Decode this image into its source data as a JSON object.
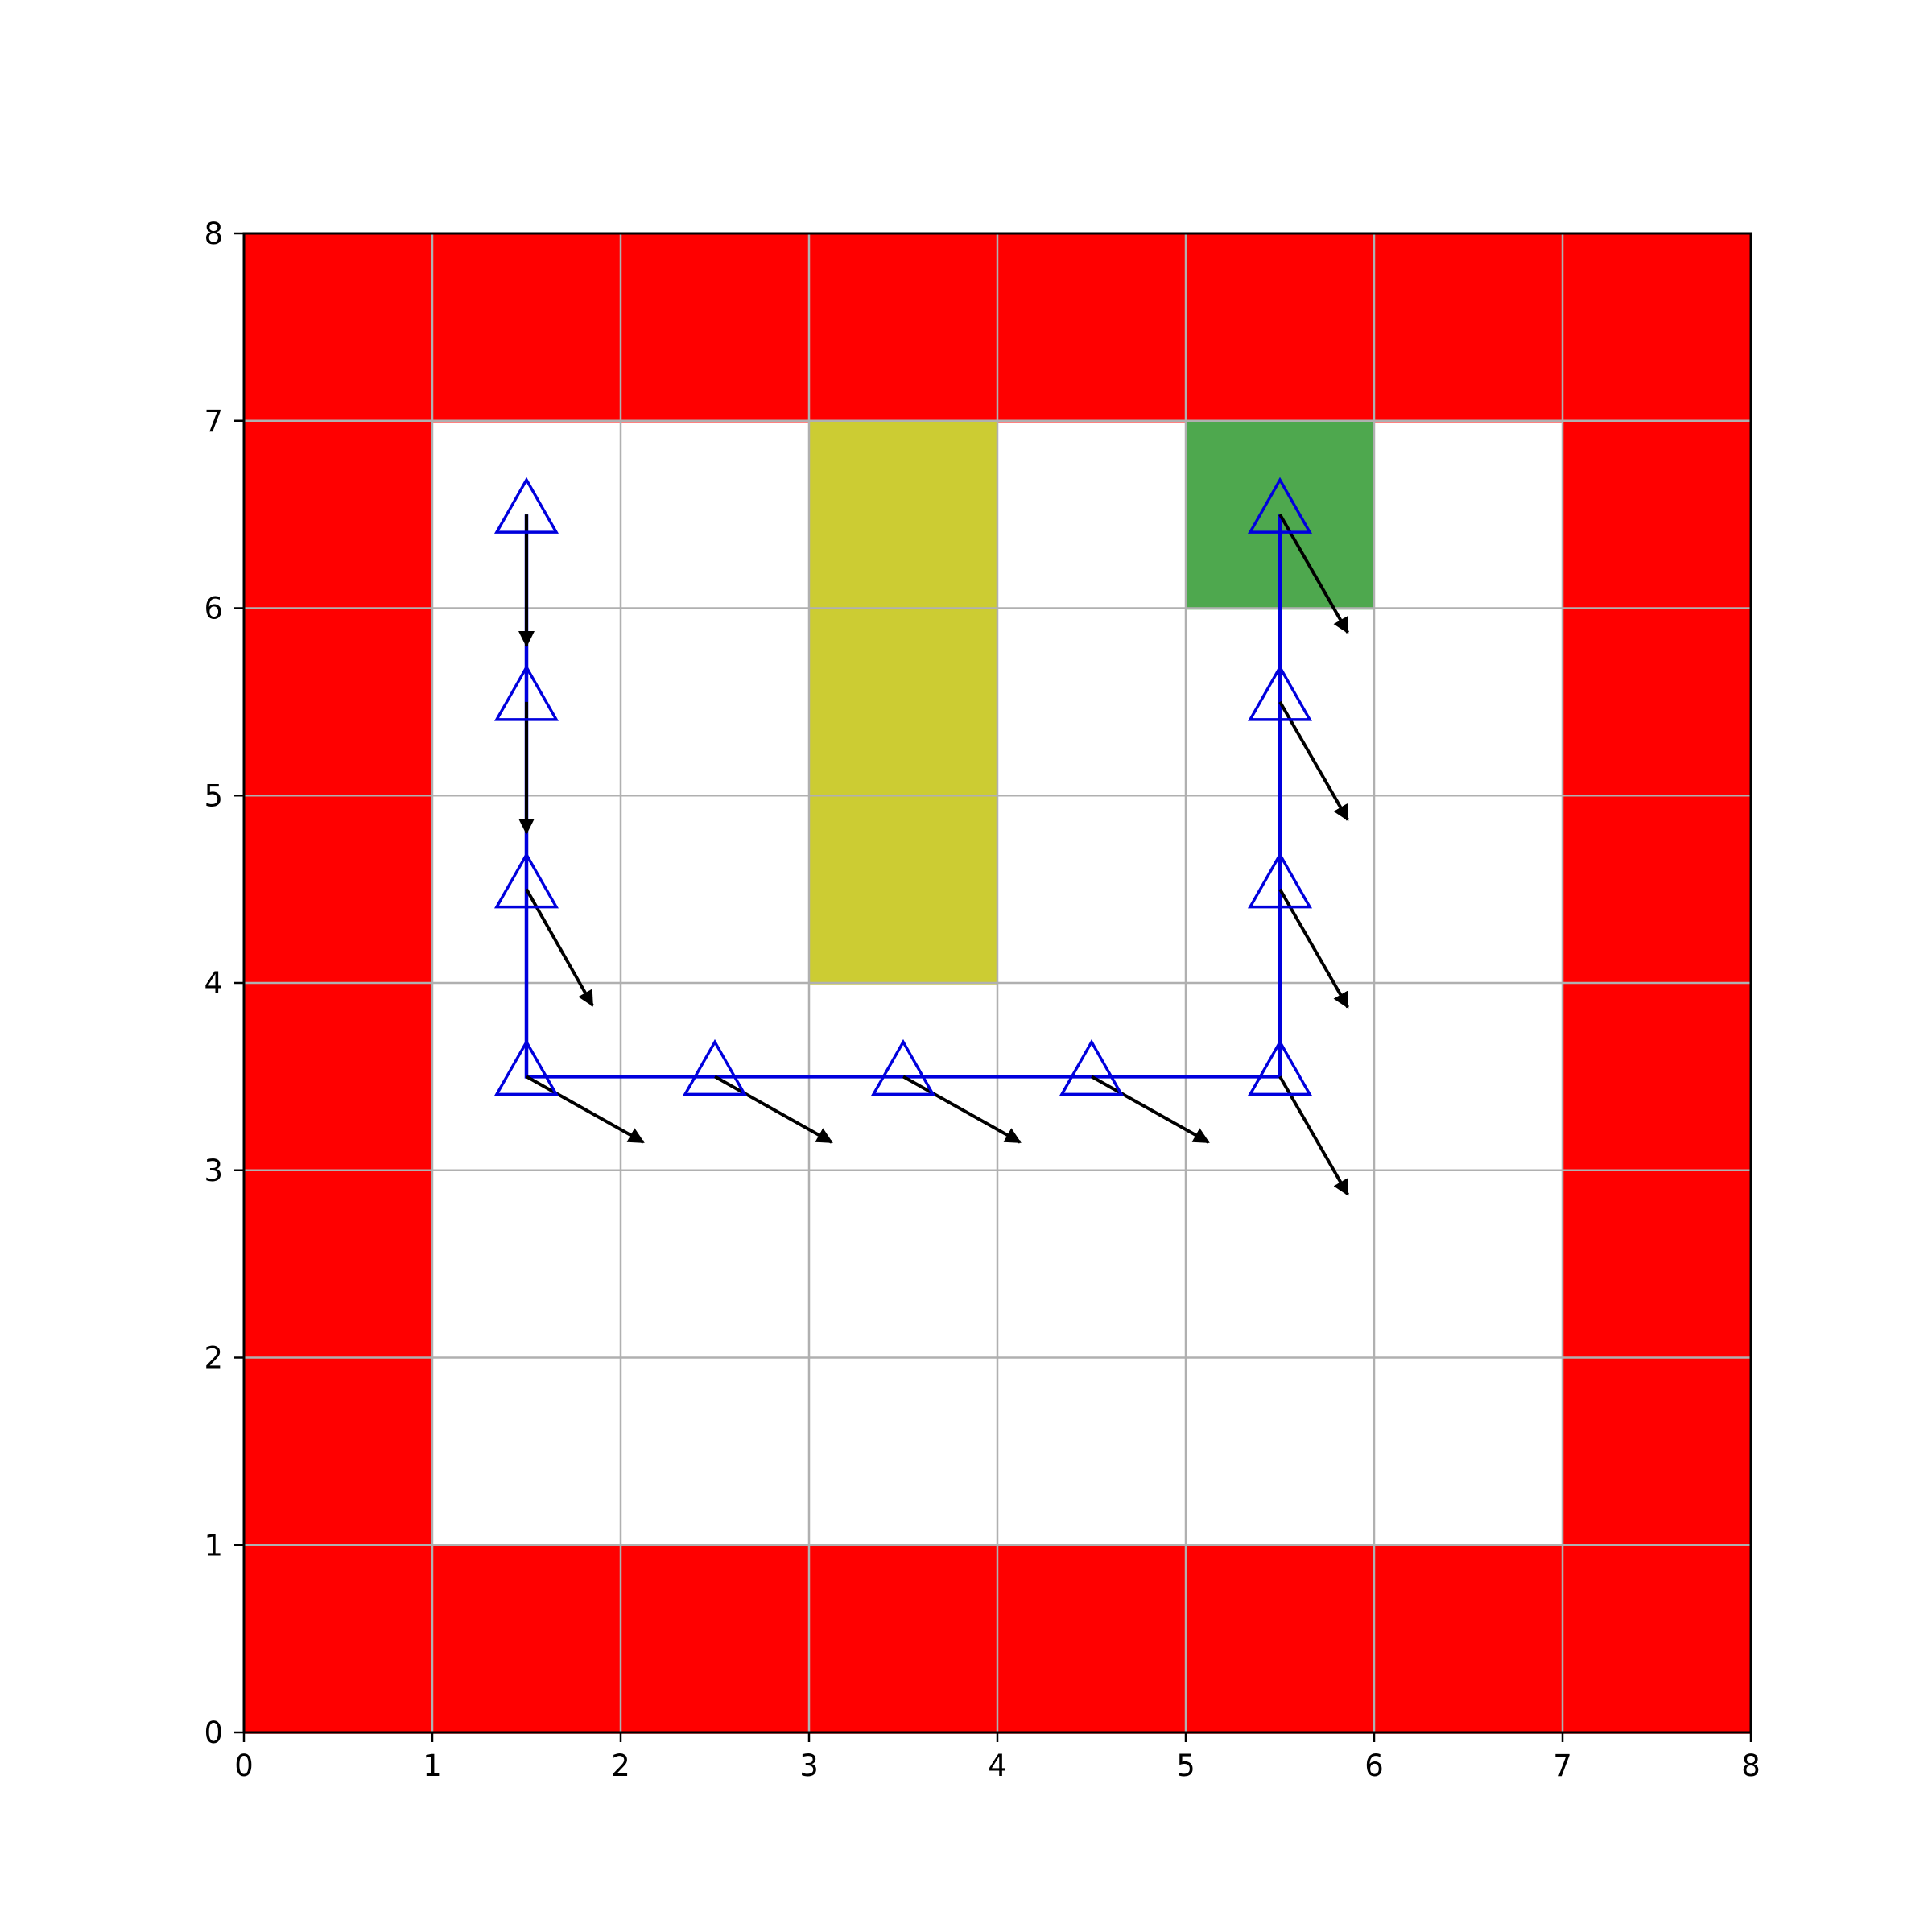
{
  "chart_data": {
    "type": "heatmap",
    "subtype": "gridworld-trajectory",
    "title": "",
    "xlabel": "",
    "ylabel": "",
    "xlim": [
      0,
      8
    ],
    "ylim": [
      0,
      8
    ],
    "x_ticks": [
      "0",
      "1",
      "2",
      "3",
      "4",
      "5",
      "6",
      "7",
      "8"
    ],
    "y_ticks": [
      "0",
      "1",
      "2",
      "3",
      "4",
      "5",
      "6",
      "7",
      "8"
    ],
    "grid": true,
    "colors": {
      "wall": "#ff0000",
      "obstacle": "#cccc33",
      "goal": "#4ea84e",
      "empty": "#ffffff",
      "path": "#0000dd",
      "arrow": "#000000",
      "gridline": "#b0b0b0"
    },
    "cells": {
      "wall": [
        [
          0,
          0
        ],
        [
          1,
          0
        ],
        [
          2,
          0
        ],
        [
          3,
          0
        ],
        [
          4,
          0
        ],
        [
          5,
          0
        ],
        [
          6,
          0
        ],
        [
          7,
          0
        ],
        [
          0,
          7
        ],
        [
          1,
          7
        ],
        [
          2,
          7
        ],
        [
          3,
          7
        ],
        [
          4,
          7
        ],
        [
          5,
          7
        ],
        [
          6,
          7
        ],
        [
          7,
          7
        ],
        [
          0,
          1
        ],
        [
          0,
          2
        ],
        [
          0,
          3
        ],
        [
          0,
          4
        ],
        [
          0,
          5
        ],
        [
          0,
          6
        ],
        [
          7,
          1
        ],
        [
          7,
          2
        ],
        [
          7,
          3
        ],
        [
          7,
          4
        ],
        [
          7,
          5
        ],
        [
          7,
          6
        ]
      ],
      "obstacle": [
        [
          3,
          4
        ],
        [
          3,
          5
        ],
        [
          3,
          6
        ]
      ],
      "goal": [
        [
          5,
          6
        ]
      ]
    },
    "path": {
      "x": [
        1.5,
        1.5,
        1.5,
        1.5,
        2.5,
        3.5,
        4.5,
        5.5,
        5.5,
        5.5,
        5.5
      ],
      "y": [
        6.5,
        5.5,
        4.5,
        3.5,
        3.5,
        3.5,
        3.5,
        3.5,
        4.5,
        5.5,
        6.5
      ],
      "marker": "triangle-up"
    },
    "arrows": [
      {
        "x": 1.5,
        "y": 6.5,
        "dx": 0.0,
        "dy": -0.7
      },
      {
        "x": 1.5,
        "y": 5.5,
        "dx": 0.0,
        "dy": -0.7
      },
      {
        "x": 1.5,
        "y": 4.5,
        "dx": 0.35,
        "dy": -0.62
      },
      {
        "x": 1.5,
        "y": 3.5,
        "dx": 0.62,
        "dy": -0.35
      },
      {
        "x": 2.5,
        "y": 3.5,
        "dx": 0.62,
        "dy": -0.35
      },
      {
        "x": 3.5,
        "y": 3.5,
        "dx": 0.62,
        "dy": -0.35
      },
      {
        "x": 4.5,
        "y": 3.5,
        "dx": 0.62,
        "dy": -0.35
      },
      {
        "x": 5.5,
        "y": 3.5,
        "dx": 0.36,
        "dy": -0.63
      },
      {
        "x": 5.5,
        "y": 4.5,
        "dx": 0.36,
        "dy": -0.63
      },
      {
        "x": 5.5,
        "y": 5.5,
        "dx": 0.36,
        "dy": -0.63
      },
      {
        "x": 5.5,
        "y": 6.5,
        "dx": 0.36,
        "dy": -0.63
      }
    ]
  }
}
